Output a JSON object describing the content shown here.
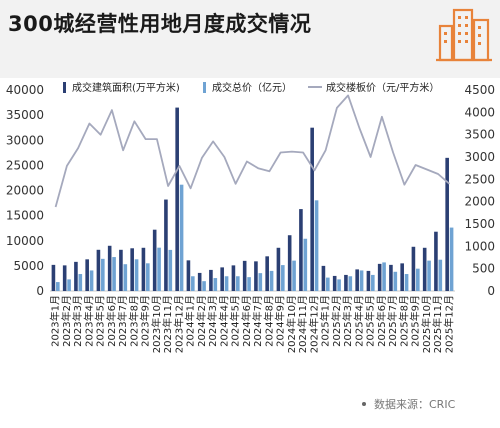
{
  "title": "300城经营性用地月度成交情况",
  "source_label": "数据来源：CRIC",
  "logo_icon": "city-buildings-icon",
  "colors": {
    "area_bar": "#2b3f73",
    "total_bar": "#6fa3d3",
    "price_line": "#a5a9bd",
    "logo": "#e8833a"
  },
  "chart_data": {
    "type": "bar",
    "categories": [
      "2023年1月",
      "2023年2月",
      "2023年3月",
      "2023年4月",
      "2023年5月",
      "2023年6月",
      "2023年7月",
      "2023年8月",
      "2023年9月",
      "2023年10月",
      "2023年11月",
      "2023年12月",
      "2024年1月",
      "2024年2月",
      "2024年3月",
      "2024年4月",
      "2024年5月",
      "2024年6月",
      "2024年7月",
      "2024年8月",
      "2024年9月",
      "2024年10月",
      "2024年11月",
      "2024年12月",
      "2025年1月",
      "2025年2月",
      "2025年3月",
      "2025年4月",
      "2025年5月",
      "2025年6月",
      "2025年7月",
      "2025年8月",
      "2025年9月",
      "2025年10月",
      "2025年11月",
      "2025年12月"
    ],
    "series": [
      {
        "name": "成交建筑面积(万平方米)",
        "kind": "bar",
        "axis": "left",
        "values": [
          5200,
          5100,
          5800,
          6300,
          8200,
          9000,
          8200,
          8500,
          8600,
          12200,
          18200,
          36500,
          6100,
          3600,
          4200,
          4700,
          5100,
          6000,
          5900,
          6900,
          8600,
          11100,
          16300,
          32500,
          5000,
          3000,
          3200,
          4300,
          4000,
          5400,
          5200,
          5500,
          8800,
          8600,
          11800,
          26500
        ]
      },
      {
        "name": "成交总价（亿元）",
        "kind": "bar",
        "axis": "right",
        "values": [
          200,
          260,
          380,
          460,
          720,
          760,
          600,
          710,
          620,
          970,
          920,
          2380,
          330,
          220,
          290,
          330,
          330,
          310,
          400,
          450,
          580,
          680,
          1170,
          2030,
          300,
          260,
          330,
          460,
          360,
          640,
          430,
          380,
          500,
          680,
          700,
          1420
        ]
      },
      {
        "name": "成交楼板价（元/平方米）",
        "kind": "line",
        "axis": "right",
        "values": [
          1880,
          2800,
          3200,
          3750,
          3500,
          4050,
          3150,
          3800,
          3400,
          3400,
          2350,
          2800,
          2300,
          2980,
          3350,
          3000,
          2400,
          2900,
          2750,
          2680,
          3100,
          3120,
          3100,
          2700,
          3150,
          4100,
          4380,
          3650,
          3000,
          3900,
          3100,
          2380,
          2820,
          2720,
          2620,
          2400
        ]
      }
    ],
    "y_left": {
      "min": 0,
      "max": 40000,
      "ticks": [
        0,
        5000,
        10000,
        15000,
        20000,
        25000,
        30000,
        35000,
        40000
      ]
    },
    "y_right": {
      "min": 0,
      "max": 4500,
      "ticks": [
        0,
        500,
        1000,
        1500,
        2000,
        2500,
        3000,
        3500,
        4000,
        4500
      ]
    },
    "legend_position": "top",
    "grid": false
  }
}
